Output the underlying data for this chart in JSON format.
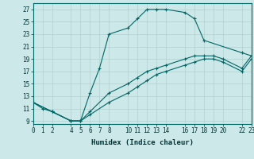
{
  "xlabel": "Humidex (Indice chaleur)",
  "bg_color": "#cce8e8",
  "grid_color": "#b0d0d0",
  "line_color": "#006666",
  "line1": {
    "x": [
      0,
      1,
      2,
      4,
      5,
      6,
      7,
      8,
      10,
      11,
      12,
      13,
      14,
      16,
      17,
      18,
      22,
      23
    ],
    "y": [
      12,
      11,
      10.5,
      9,
      9,
      13.5,
      17.5,
      23,
      24,
      25.5,
      27,
      27,
      27,
      26.5,
      25.5,
      22,
      20,
      19.5
    ]
  },
  "line2": {
    "x": [
      0,
      2,
      4,
      5,
      6,
      8,
      10,
      11,
      12,
      13,
      14,
      16,
      17,
      18,
      19,
      20,
      22,
      23
    ],
    "y": [
      12,
      10.5,
      9,
      9,
      10.5,
      13.5,
      15,
      16,
      17,
      17.5,
      18,
      19,
      19.5,
      19.5,
      19.5,
      19,
      17.5,
      19.5
    ]
  },
  "line3": {
    "x": [
      0,
      2,
      4,
      5,
      6,
      8,
      10,
      11,
      12,
      13,
      14,
      16,
      17,
      18,
      19,
      20,
      22,
      23
    ],
    "y": [
      12,
      10.5,
      9,
      9,
      10,
      12,
      13.5,
      14.5,
      15.5,
      16.5,
      17,
      18,
      18.5,
      19,
      19,
      18.5,
      17,
      19
    ]
  },
  "xlim": [
    0,
    23
  ],
  "ylim": [
    8.5,
    28
  ],
  "xticks": [
    0,
    1,
    2,
    4,
    5,
    6,
    7,
    8,
    10,
    11,
    12,
    13,
    14,
    16,
    17,
    18,
    19,
    20,
    22,
    23
  ],
  "yticks": [
    9,
    11,
    13,
    15,
    17,
    19,
    21,
    23,
    25,
    27
  ],
  "tick_fontsize": 5.5,
  "xlabel_fontsize": 6.5
}
